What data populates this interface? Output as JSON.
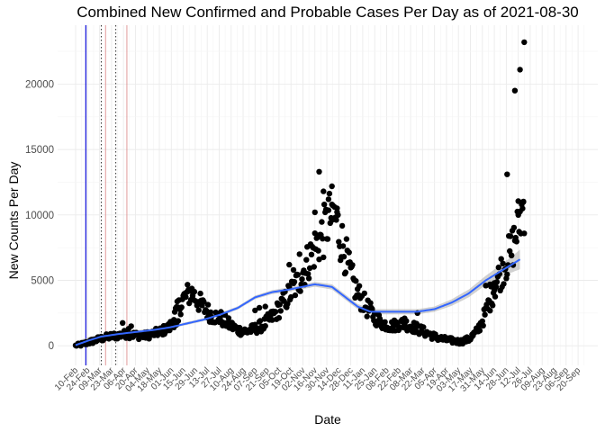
{
  "chart_data": {
    "type": "scatter",
    "title": "Combined New Confirmed and Probable Cases Per Day as of 2021-08-30",
    "xlabel": "Date",
    "ylabel": "New Counts Per Day",
    "x_domain_days": [
      0,
      590
    ],
    "ylim": [
      -1500,
      24500
    ],
    "y_ticks": [
      0,
      5000,
      10000,
      15000,
      20000
    ],
    "y_tick_labels": [
      "0",
      "5000",
      "10000",
      "15000",
      "20000"
    ],
    "x_tick_labels": [
      "10-Feb",
      "24-Feb",
      "09-Mar",
      "23-Mar",
      "06-Apr",
      "20-Apr",
      "04-May",
      "18-May",
      "01-Jun",
      "15-Jun",
      "29-Jun",
      "13-Jul",
      "27-Jul",
      "10-Aug",
      "24-Aug",
      "07-Sep",
      "21-Sep",
      "05-Oct",
      "19-Oct",
      "02-Nov",
      "16-Nov",
      "30-Nov",
      "14-Dec",
      "28-Dec",
      "11-Jan",
      "25-Jan",
      "08-Feb",
      "22-Feb",
      "08-Mar",
      "22-Mar",
      "05-Apr",
      "19-Apr",
      "03-May",
      "17-May",
      "31-May",
      "14-Jun",
      "28-Jun",
      "12-Jul",
      "26-Jul",
      "09-Aug",
      "23-Aug",
      "06-Sep",
      "20-Sep"
    ],
    "x_tick_first_day": 0,
    "x_tick_step_days": 14,
    "reference_lines": [
      {
        "day": 12,
        "style": "solid",
        "color": "#1a1adb",
        "width": 1.3
      },
      {
        "day": 30,
        "style": "dotted",
        "color": "#333333",
        "width": 1.0
      },
      {
        "day": 35,
        "style": "solid",
        "color": "#d98080",
        "width": 0.8
      },
      {
        "day": 47,
        "style": "dotted",
        "color": "#333333",
        "width": 1.0
      },
      {
        "day": 60,
        "style": "solid",
        "color": "#d98080",
        "width": 0.8
      }
    ],
    "smooth_color": "#3366ff",
    "band_color": "#999999",
    "point_color": "#000000",
    "anchors": [
      [
        0,
        0
      ],
      [
        10,
        150
      ],
      [
        20,
        350
      ],
      [
        30,
        550
      ],
      [
        40,
        700
      ],
      [
        50,
        800
      ],
      [
        60,
        900
      ],
      [
        70,
        800
      ],
      [
        80,
        750
      ],
      [
        90,
        900
      ],
      [
        100,
        1100
      ],
      [
        110,
        1400
      ],
      [
        115,
        2200
      ],
      [
        120,
        2800
      ],
      [
        125,
        3500
      ],
      [
        130,
        3800
      ],
      [
        135,
        4100
      ],
      [
        140,
        3700
      ],
      [
        145,
        3300
      ],
      [
        150,
        2900
      ],
      [
        160,
        2300
      ],
      [
        170,
        2100
      ],
      [
        180,
        1600
      ],
      [
        190,
        1200
      ],
      [
        200,
        1100
      ],
      [
        210,
        1300
      ],
      [
        220,
        1600
      ],
      [
        230,
        2200
      ],
      [
        240,
        3000
      ],
      [
        250,
        3900
      ],
      [
        260,
        4800
      ],
      [
        270,
        6200
      ],
      [
        280,
        7500
      ],
      [
        290,
        8600
      ],
      [
        295,
        9500
      ],
      [
        300,
        10000
      ],
      [
        305,
        9600
      ],
      [
        310,
        8300
      ],
      [
        315,
        7200
      ],
      [
        320,
        5800
      ],
      [
        325,
        4800
      ],
      [
        330,
        4000
      ],
      [
        340,
        3000
      ],
      [
        350,
        2200
      ],
      [
        360,
        1700
      ],
      [
        370,
        1500
      ],
      [
        380,
        1700
      ],
      [
        390,
        1600
      ],
      [
        400,
        1300
      ],
      [
        410,
        1000
      ],
      [
        420,
        700
      ],
      [
        430,
        500
      ],
      [
        440,
        400
      ],
      [
        450,
        300
      ],
      [
        460,
        500
      ],
      [
        470,
        1100
      ],
      [
        480,
        2500
      ],
      [
        490,
        4500
      ],
      [
        500,
        6000
      ],
      [
        510,
        7200
      ],
      [
        515,
        8500
      ],
      [
        520,
        9800
      ],
      [
        525,
        11000
      ]
    ],
    "extra_points": [
      [
        285,
        13300
      ],
      [
        290,
        11800
      ],
      [
        296,
        11200
      ],
      [
        300,
        10800
      ],
      [
        306,
        10500
      ],
      [
        280,
        10200
      ],
      [
        300,
        9600
      ],
      [
        250,
        6200
      ],
      [
        255,
        5800
      ],
      [
        262,
        7000
      ],
      [
        210,
        2700
      ],
      [
        215,
        2900
      ],
      [
        222,
        3000
      ],
      [
        115,
        1400
      ],
      [
        118,
        1600
      ],
      [
        120,
        1900
      ],
      [
        55,
        1750
      ],
      [
        62,
        1300
      ],
      [
        65,
        1500
      ],
      [
        400,
        2500
      ],
      [
        385,
        2100
      ],
      [
        505,
        13100
      ],
      [
        514,
        19500
      ],
      [
        520,
        21100
      ],
      [
        525,
        23200
      ],
      [
        518,
        10000
      ],
      [
        522,
        10800
      ],
      [
        524,
        11000
      ],
      [
        510,
        6900
      ],
      [
        480,
        4600
      ],
      [
        485,
        4700
      ],
      [
        490,
        4800
      ]
    ],
    "smooth": [
      [
        0,
        50
      ],
      [
        15,
        400
      ],
      [
        30,
        700
      ],
      [
        50,
        900
      ],
      [
        70,
        1050
      ],
      [
        90,
        1200
      ],
      [
        110,
        1400
      ],
      [
        130,
        1700
      ],
      [
        150,
        2000
      ],
      [
        170,
        2400
      ],
      [
        190,
        2900
      ],
      [
        210,
        3700
      ],
      [
        230,
        4100
      ],
      [
        250,
        4300
      ],
      [
        265,
        4500
      ],
      [
        280,
        4700
      ],
      [
        300,
        4500
      ],
      [
        320,
        3500
      ],
      [
        330,
        3000
      ],
      [
        345,
        2600
      ],
      [
        360,
        2600
      ],
      [
        380,
        2600
      ],
      [
        400,
        2600
      ],
      [
        420,
        2800
      ],
      [
        440,
        3300
      ],
      [
        460,
        4000
      ],
      [
        480,
        5000
      ],
      [
        500,
        5800
      ],
      [
        520,
        6600
      ]
    ],
    "band_halfwidth": [
      [
        0,
        300
      ],
      [
        20,
        250
      ],
      [
        40,
        150
      ],
      [
        100,
        100
      ],
      [
        200,
        130
      ],
      [
        300,
        200
      ],
      [
        420,
        200
      ],
      [
        480,
        350
      ],
      [
        510,
        600
      ],
      [
        520,
        750
      ]
    ]
  }
}
